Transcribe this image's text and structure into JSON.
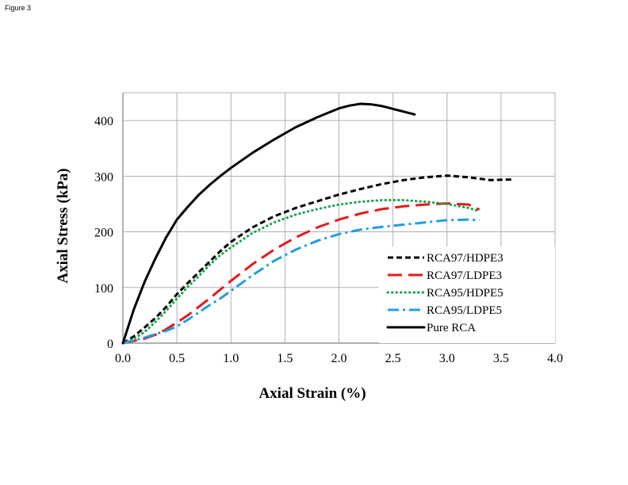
{
  "figure_label": "Figure 3",
  "chart_data": {
    "type": "line",
    "xlabel": "Axial Strain (%)",
    "ylabel": "Axial Stress (kPa)",
    "xlim": [
      0.0,
      4.0
    ],
    "ylim": [
      0,
      450
    ],
    "xticks": [
      0.0,
      0.5,
      1.0,
      1.5,
      2.0,
      2.5,
      3.0,
      3.5,
      4.0
    ],
    "xtick_labels": [
      "0.0",
      "0.5",
      "1.0",
      "1.5",
      "2.0",
      "2.5",
      "3.0",
      "3.5",
      "4.0"
    ],
    "yticks": [
      0,
      100,
      200,
      300,
      400
    ],
    "ytick_labels": [
      "0",
      "100",
      "200",
      "300",
      "400"
    ],
    "grid": true,
    "legend_position": "bottom-right",
    "series": [
      {
        "name": "RCA97/HDPE3",
        "color": "#000000",
        "dash": "short-dash",
        "x": [
          0.0,
          0.1,
          0.2,
          0.3,
          0.4,
          0.5,
          0.6,
          0.7,
          0.8,
          0.9,
          1.0,
          1.2,
          1.4,
          1.6,
          1.8,
          2.0,
          2.2,
          2.4,
          2.6,
          2.8,
          3.0,
          3.2,
          3.4,
          3.6
        ],
        "y": [
          0,
          12,
          28,
          45,
          65,
          88,
          108,
          127,
          146,
          165,
          182,
          208,
          228,
          243,
          255,
          267,
          277,
          286,
          293,
          298,
          301,
          298,
          293,
          294
        ]
      },
      {
        "name": "RCA97/LDPE3",
        "color": "#e31a1c",
        "dash": "long-dash",
        "x": [
          0.0,
          0.2,
          0.3,
          0.4,
          0.5,
          0.6,
          0.7,
          0.8,
          0.9,
          1.0,
          1.2,
          1.4,
          1.6,
          1.8,
          2.0,
          2.2,
          2.4,
          2.6,
          2.8,
          3.0,
          3.2,
          3.3
        ],
        "y": [
          0,
          8,
          15,
          25,
          37,
          50,
          65,
          80,
          96,
          112,
          142,
          168,
          190,
          208,
          222,
          233,
          241,
          246,
          249,
          251,
          249,
          240
        ]
      },
      {
        "name": "RCA95/HDPE5",
        "color": "#16a34a",
        "dash": "dotted",
        "x": [
          0.0,
          0.1,
          0.2,
          0.3,
          0.4,
          0.5,
          0.6,
          0.7,
          0.8,
          0.9,
          1.0,
          1.2,
          1.4,
          1.6,
          1.8,
          2.0,
          2.2,
          2.4,
          2.6,
          2.8,
          3.0,
          3.2,
          3.3
        ],
        "y": [
          0,
          8,
          20,
          38,
          58,
          80,
          101,
          120,
          140,
          158,
          172,
          198,
          217,
          231,
          241,
          249,
          254,
          257,
          257,
          254,
          250,
          243,
          237
        ]
      },
      {
        "name": "RCA95/LDPE5",
        "color": "#1f9fde",
        "dash": "dash-dot",
        "x": [
          0.0,
          0.2,
          0.4,
          0.5,
          0.6,
          0.7,
          0.8,
          0.9,
          1.0,
          1.2,
          1.4,
          1.6,
          1.8,
          2.0,
          2.2,
          2.4,
          2.6,
          2.8,
          3.0,
          3.2,
          3.3
        ],
        "y": [
          0,
          10,
          22,
          30,
          42,
          55,
          68,
          80,
          94,
          122,
          148,
          168,
          184,
          196,
          204,
          209,
          213,
          217,
          221,
          222,
          221
        ]
      },
      {
        "name": "Pure RCA",
        "color": "#000000",
        "dash": "solid",
        "x": [
          0.0,
          0.1,
          0.2,
          0.3,
          0.4,
          0.5,
          0.6,
          0.7,
          0.8,
          0.9,
          1.0,
          1.2,
          1.4,
          1.6,
          1.8,
          2.0,
          2.1,
          2.2,
          2.3,
          2.4,
          2.5,
          2.6,
          2.7
        ],
        "y": [
          0,
          60,
          110,
          152,
          190,
          222,
          245,
          266,
          284,
          300,
          315,
          342,
          366,
          388,
          406,
          422,
          427,
          430,
          429,
          426,
          421,
          416,
          411
        ]
      }
    ]
  }
}
